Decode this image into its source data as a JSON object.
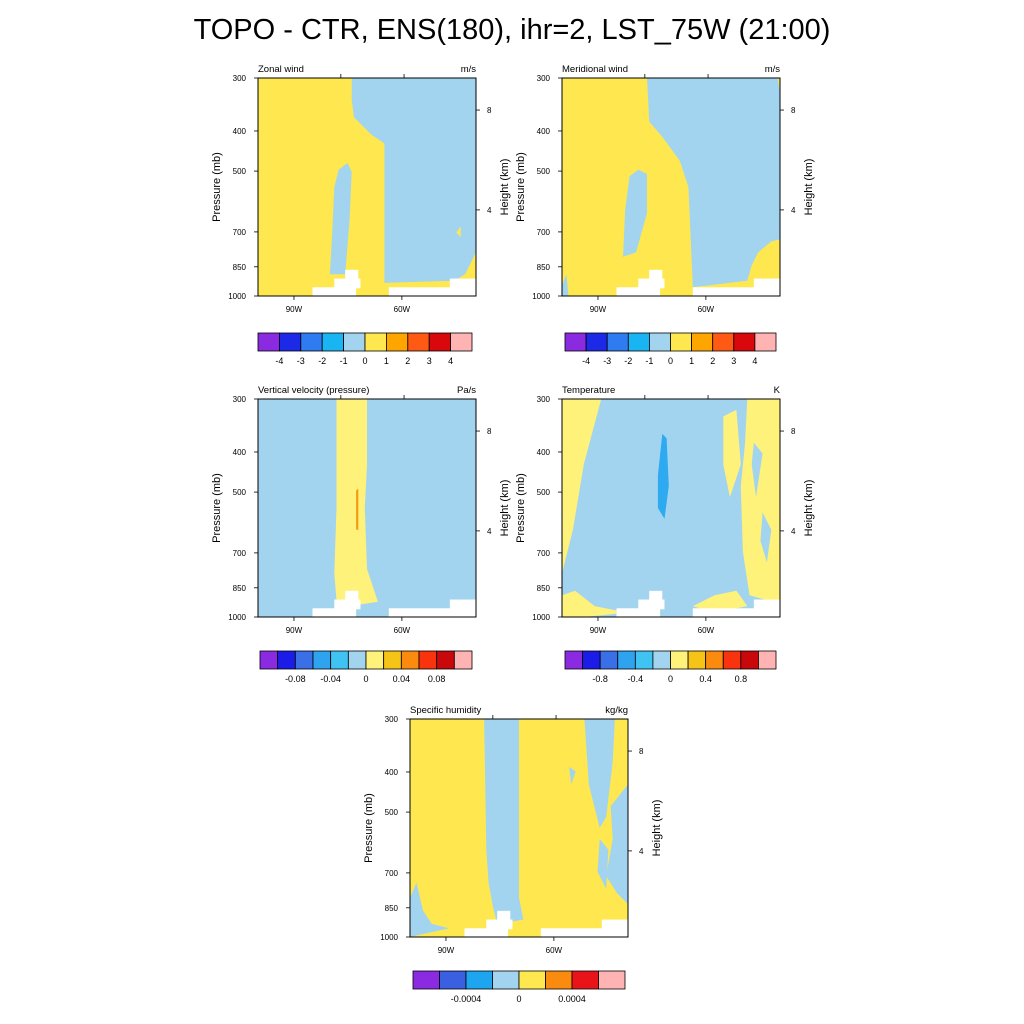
{
  "title": "TOPO - CTR, ENS(180), ihr=2, LST_75W (21:00)",
  "colors": {
    "yellow": "#ffe84f",
    "lightyellow": "#fff27a",
    "lightblue": "#a3d4ef",
    "blue": "#2eaaf0",
    "orange": "#f39c12",
    "terrain": "#ffffff"
  },
  "chart_data": [
    {
      "type": "contour",
      "title": "Zonal wind",
      "units": "m/s",
      "ylabel_left": "Pressure (mb)",
      "ylabel_right": "Height (km)",
      "pressure_ticks": [
        "300",
        "400",
        "500",
        "700",
        "850",
        "1000"
      ],
      "height_ticks": [
        "8",
        "4"
      ],
      "lon_ticks": [
        "90W",
        "60W"
      ],
      "colorbar": {
        "labels": [
          "-4",
          "-3",
          "-2",
          "-1",
          "0",
          "1",
          "2",
          "3",
          "4"
        ],
        "colors": [
          "#8a2be2",
          "#1c2ae8",
          "#2f7cf0",
          "#19b5f2",
          "#a3d4ef",
          "#ffe84f",
          "#ffa500",
          "#ff5a13",
          "#d9080d",
          "#ffb3b3"
        ]
      }
    },
    {
      "type": "contour",
      "title": "Meridional wind",
      "units": "m/s",
      "ylabel_left": "Pressure (mb)",
      "ylabel_right": "Height (km)",
      "pressure_ticks": [
        "300",
        "400",
        "500",
        "700",
        "850",
        "1000"
      ],
      "height_ticks": [
        "8",
        "4"
      ],
      "lon_ticks": [
        "90W",
        "60W"
      ],
      "colorbar": {
        "labels": [
          "-4",
          "-3",
          "-2",
          "-1",
          "0",
          "1",
          "2",
          "3",
          "4"
        ],
        "colors": [
          "#8a2be2",
          "#1c2ae8",
          "#2f7cf0",
          "#19b5f2",
          "#a3d4ef",
          "#ffe84f",
          "#ffa500",
          "#ff5a13",
          "#d9080d",
          "#ffb3b3"
        ]
      }
    },
    {
      "type": "contour",
      "title": "Vertical velocity (pressure)",
      "units": "Pa/s",
      "ylabel_left": "Pressure (mb)",
      "ylabel_right": "Height (km)",
      "pressure_ticks": [
        "300",
        "400",
        "500",
        "700",
        "850",
        "1000"
      ],
      "height_ticks": [
        "8",
        "4"
      ],
      "lon_ticks": [
        "90W",
        "60W"
      ],
      "colorbar": {
        "labels": [
          "-0.08",
          "-0.04",
          "0",
          "0.04",
          "0.08"
        ],
        "colors": [
          "#8a2be2",
          "#1c1ce8",
          "#3a6fe8",
          "#2ea3f0",
          "#3fc3f2",
          "#a3d4ef",
          "#fff27a",
          "#f6c417",
          "#fa8b0f",
          "#f8330d",
          "#c8080a",
          "#ffb3b3"
        ]
      }
    },
    {
      "type": "contour",
      "title": "Temperature",
      "units": "K",
      "ylabel_left": "Pressure (mb)",
      "ylabel_right": "Height (km)",
      "pressure_ticks": [
        "300",
        "400",
        "500",
        "700",
        "850",
        "1000"
      ],
      "height_ticks": [
        "8",
        "4"
      ],
      "lon_ticks": [
        "90W",
        "60W"
      ],
      "colorbar": {
        "labels": [
          "-0.8",
          "-0.4",
          "0",
          "0.4",
          "0.8"
        ],
        "colors": [
          "#8a2be2",
          "#1c1ce8",
          "#3a6fe8",
          "#2ea3f0",
          "#3fc3f2",
          "#a3d4ef",
          "#fff27a",
          "#f6c417",
          "#fa8b0f",
          "#f8330d",
          "#c8080a",
          "#ffb3b3"
        ]
      }
    },
    {
      "type": "contour",
      "title": "Specific humidity",
      "units": "kg/kg",
      "ylabel_left": "Pressure (mb)",
      "ylabel_right": "Height (km)",
      "pressure_ticks": [
        "300",
        "400",
        "500",
        "700",
        "850",
        "1000"
      ],
      "height_ticks": [
        "8",
        "4"
      ],
      "lon_ticks": [
        "90W",
        "60W"
      ],
      "colorbar": {
        "labels": [
          "-0.0004",
          "0",
          "0.0004"
        ],
        "colors": [
          "#8a2be2",
          "#3a5fe0",
          "#1ea5f0",
          "#a3d4ef",
          "#ffe84f",
          "#fa8b0f",
          "#e8141a",
          "#ffb3b3"
        ]
      }
    }
  ]
}
